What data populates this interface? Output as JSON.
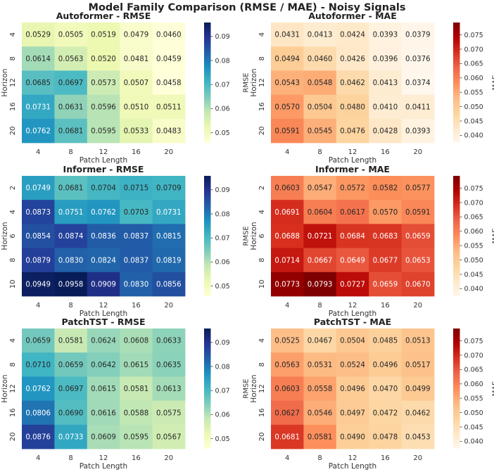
{
  "figure_title": "Model Family Comparison (RMSE / MAE) - Noisy Signals",
  "chart_data": [
    {
      "type": "heatmap",
      "title": "Autoformer - RMSE",
      "xlabel": "Patch Length",
      "ylabel": "Horizon",
      "x_categories": [
        "4",
        "8",
        "12",
        "16",
        "20"
      ],
      "y_categories": [
        "4",
        "8",
        "12",
        "16",
        "20"
      ],
      "values": [
        [
          0.0529,
          0.0505,
          0.0519,
          0.0479,
          0.046
        ],
        [
          0.0614,
          0.0563,
          0.052,
          0.0481,
          0.0459
        ],
        [
          0.0685,
          0.0697,
          0.0573,
          0.0507,
          0.0458
        ],
        [
          0.0731,
          0.0631,
          0.0596,
          0.051,
          0.0511
        ],
        [
          0.0762,
          0.0681,
          0.0595,
          0.0533,
          0.0483
        ]
      ],
      "colormap": "YlGnBu",
      "vmin": 0.0458,
      "vmax": 0.0958,
      "colorbar_label": "RMSE",
      "colorbar_ticks": [
        "0.05",
        "0.06",
        "0.07",
        "0.08",
        "0.09"
      ]
    },
    {
      "type": "heatmap",
      "title": "Autoformer - MAE",
      "xlabel": "Patch Length",
      "ylabel": "Horizon",
      "x_categories": [
        "4",
        "8",
        "12",
        "16",
        "20"
      ],
      "y_categories": [
        "4",
        "8",
        "12",
        "16",
        "20"
      ],
      "values": [
        [
          0.0431,
          0.0413,
          0.0424,
          0.0393,
          0.0379
        ],
        [
          0.0494,
          0.046,
          0.0426,
          0.0396,
          0.0376
        ],
        [
          0.0543,
          0.0548,
          0.0462,
          0.0413,
          0.0374
        ],
        [
          0.057,
          0.0504,
          0.048,
          0.041,
          0.0411
        ],
        [
          0.0591,
          0.0545,
          0.0476,
          0.0428,
          0.0393
        ]
      ],
      "colormap": "OrRd",
      "vmin": 0.0374,
      "vmax": 0.0793,
      "colorbar_label": "MAE",
      "colorbar_ticks": [
        "0.040",
        "0.045",
        "0.050",
        "0.055",
        "0.060",
        "0.065",
        "0.070",
        "0.075"
      ]
    },
    {
      "type": "heatmap",
      "title": "Informer - RMSE",
      "xlabel": "Patch Length",
      "ylabel": "Horizon",
      "x_categories": [
        "4",
        "8",
        "12",
        "16",
        "20"
      ],
      "y_categories": [
        "2",
        "4",
        "6",
        "8",
        "10"
      ],
      "values": [
        [
          0.0749,
          0.0681,
          0.0704,
          0.0715,
          0.0709
        ],
        [
          0.0873,
          0.0751,
          0.0762,
          0.0703,
          0.0731
        ],
        [
          0.0854,
          0.0874,
          0.0836,
          0.0837,
          0.0815
        ],
        [
          0.0879,
          0.083,
          0.0824,
          0.0837,
          0.0819
        ],
        [
          0.0949,
          0.0958,
          0.0909,
          0.083,
          0.0856
        ]
      ],
      "colormap": "YlGnBu",
      "vmin": 0.0458,
      "vmax": 0.0958,
      "colorbar_label": "RMSE",
      "colorbar_ticks": [
        "0.05",
        "0.06",
        "0.07",
        "0.08",
        "0.09"
      ]
    },
    {
      "type": "heatmap",
      "title": "Informer - MAE",
      "xlabel": "Patch Length",
      "ylabel": "Horizon",
      "x_categories": [
        "4",
        "8",
        "12",
        "16",
        "20"
      ],
      "y_categories": [
        "2",
        "4",
        "6",
        "8",
        "10"
      ],
      "values": [
        [
          0.0603,
          0.0547,
          0.0572,
          0.0582,
          0.0577
        ],
        [
          0.0691,
          0.0604,
          0.0617,
          0.057,
          0.0591
        ],
        [
          0.0688,
          0.0721,
          0.0684,
          0.0683,
          0.0659
        ],
        [
          0.0714,
          0.0667,
          0.0649,
          0.0677,
          0.0653
        ],
        [
          0.0773,
          0.0793,
          0.0727,
          0.0659,
          0.067
        ]
      ],
      "colormap": "OrRd",
      "vmin": 0.0374,
      "vmax": 0.0793,
      "colorbar_label": "MAE",
      "colorbar_ticks": [
        "0.040",
        "0.045",
        "0.050",
        "0.055",
        "0.060",
        "0.065",
        "0.070",
        "0.075"
      ]
    },
    {
      "type": "heatmap",
      "title": "PatchTST - RMSE",
      "xlabel": "Patch Length",
      "ylabel": "Horizon",
      "x_categories": [
        "4",
        "8",
        "12",
        "16",
        "20"
      ],
      "y_categories": [
        "4",
        "8",
        "12",
        "16",
        "20"
      ],
      "values": [
        [
          0.0659,
          0.0581,
          0.0624,
          0.0608,
          0.0633
        ],
        [
          0.071,
          0.0659,
          0.0642,
          0.0615,
          0.0635
        ],
        [
          0.0762,
          0.0697,
          0.0615,
          0.0581,
          0.0613
        ],
        [
          0.0806,
          0.069,
          0.0616,
          0.0588,
          0.0575
        ],
        [
          0.0876,
          0.0733,
          0.0609,
          0.0595,
          0.0567
        ]
      ],
      "colormap": "YlGnBu",
      "vmin": 0.0458,
      "vmax": 0.0958,
      "colorbar_label": "RMSE",
      "colorbar_ticks": [
        "0.05",
        "0.06",
        "0.07",
        "0.08",
        "0.09"
      ]
    },
    {
      "type": "heatmap",
      "title": "PatchTST - MAE",
      "xlabel": "Patch Length",
      "ylabel": "Horizon",
      "x_categories": [
        "4",
        "8",
        "12",
        "16",
        "20"
      ],
      "y_categories": [
        "4",
        "8",
        "12",
        "16",
        "20"
      ],
      "values": [
        [
          0.0525,
          0.0467,
          0.0504,
          0.0485,
          0.0513
        ],
        [
          0.0563,
          0.0531,
          0.0524,
          0.0496,
          0.0517
        ],
        [
          0.0603,
          0.0558,
          0.0496,
          0.047,
          0.0499
        ],
        [
          0.0627,
          0.0546,
          0.0497,
          0.0472,
          0.0462
        ],
        [
          0.0681,
          0.0581,
          0.049,
          0.0478,
          0.0453
        ]
      ],
      "colormap": "OrRd",
      "vmin": 0.0374,
      "vmax": 0.0793,
      "colorbar_label": "MAE",
      "colorbar_ticks": [
        "0.040",
        "0.045",
        "0.050",
        "0.055",
        "0.060",
        "0.065",
        "0.070",
        "0.075"
      ]
    }
  ]
}
